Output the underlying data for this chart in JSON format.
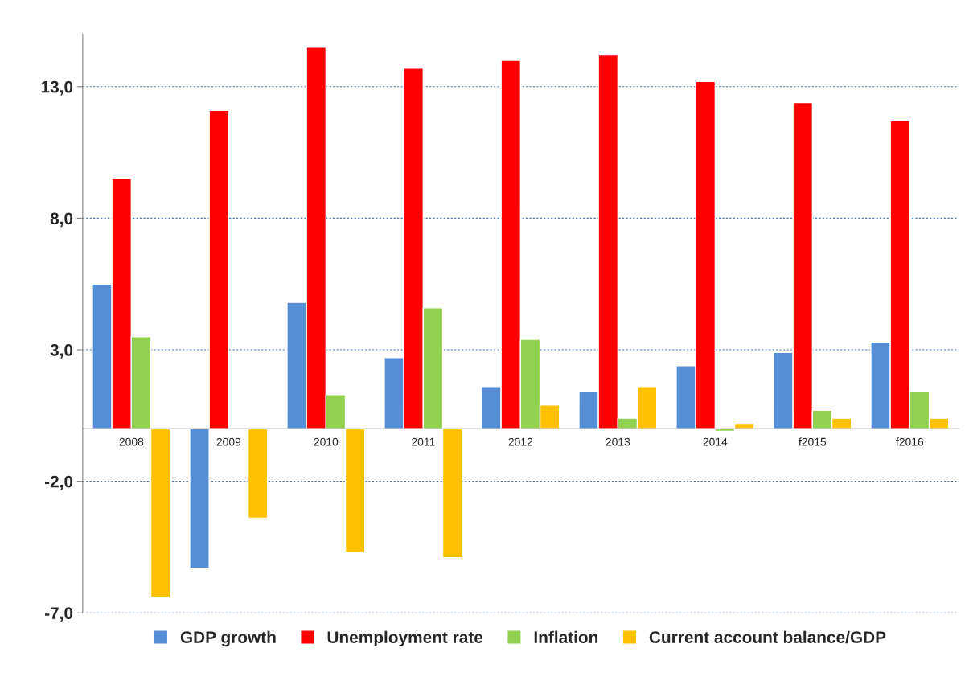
{
  "chart_data": {
    "type": "bar",
    "categories": [
      "2008",
      "2009",
      "2010",
      "2011",
      "2012",
      "2013",
      "2014",
      "f2015",
      "f2016"
    ],
    "series": [
      {
        "name": "GDP growth",
        "color": "#558ed5",
        "values": [
          5.5,
          -5.3,
          4.8,
          2.7,
          1.6,
          1.4,
          2.4,
          2.9,
          3.3
        ]
      },
      {
        "name": "Unemployment rate",
        "color": "#ff0000",
        "values": [
          9.5,
          12.1,
          14.5,
          13.7,
          14.0,
          14.2,
          13.2,
          12.4,
          11.7
        ]
      },
      {
        "name": "Inflation",
        "color": "#92d050",
        "values": [
          3.5,
          null,
          1.3,
          4.6,
          3.4,
          0.4,
          -0.1,
          0.7,
          1.4
        ]
      },
      {
        "name": "Current account balance/GDP",
        "color": "#ffc000",
        "values": [
          -6.4,
          -3.4,
          -4.7,
          -4.9,
          0.9,
          1.6,
          0.2,
          0.4,
          0.4
        ]
      }
    ],
    "ylim": [
      -7,
      15
    ],
    "yticks": [
      {
        "value": -7,
        "label": "-7,0"
      },
      {
        "value": -2,
        "label": "-2,0"
      },
      {
        "value": 3,
        "label": "3,0"
      },
      {
        "value": 8,
        "label": "8,0"
      },
      {
        "value": 13,
        "label": "13,0"
      }
    ],
    "grid": "y",
    "legend": "bottom"
  }
}
